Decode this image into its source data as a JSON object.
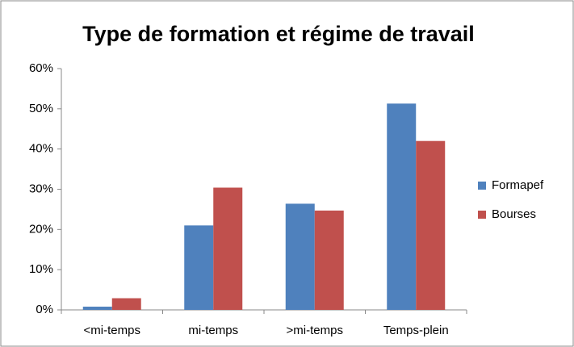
{
  "chart_data": {
    "type": "bar",
    "title": "Type de formation et régime de travail",
    "categories": [
      "<mi-temps",
      "mi-temps",
      ">mi-temps",
      "Temps-plein"
    ],
    "series": [
      {
        "name": "Formapef",
        "color": "#4f81bd",
        "values": [
          0.8,
          21,
          26.4,
          51.3
        ]
      },
      {
        "name": "Bourses",
        "color": "#c0504d",
        "values": [
          2.9,
          30.4,
          24.7,
          42
        ]
      }
    ],
    "ylim": [
      0,
      60
    ],
    "yticks": [
      {
        "value": 0,
        "label": "0%"
      },
      {
        "value": 10,
        "label": "10%"
      },
      {
        "value": 20,
        "label": "20%"
      },
      {
        "value": 30,
        "label": "30%"
      },
      {
        "value": 40,
        "label": "40%"
      },
      {
        "value": 50,
        "label": "50%"
      },
      {
        "value": 60,
        "label": "60%"
      }
    ],
    "grid": false,
    "legend": "right"
  }
}
